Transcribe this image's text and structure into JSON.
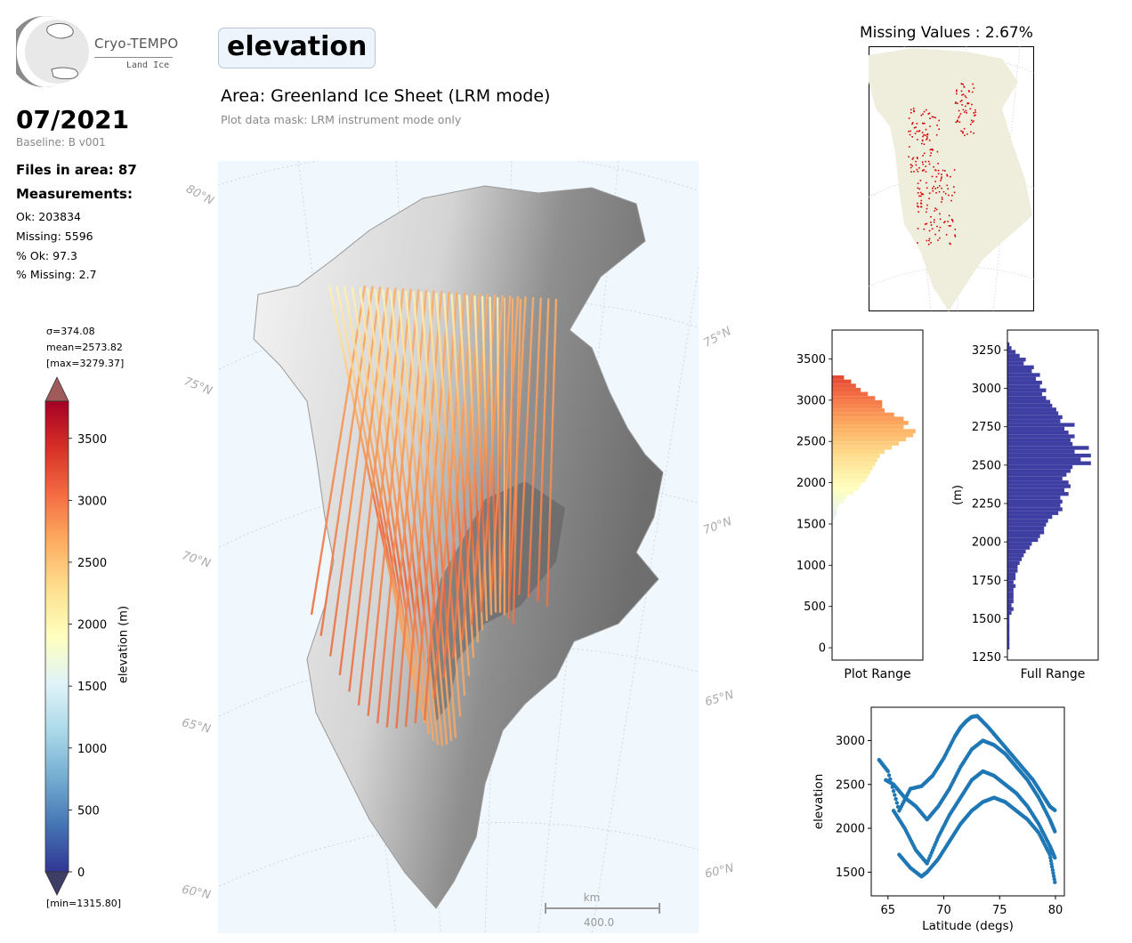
{
  "logo": {
    "name": "Cryo-TEMPO",
    "sub": "Land Ice"
  },
  "header": {
    "date": "07/2021",
    "baseline": "Baseline: B v001",
    "title": "elevation",
    "area": "Area: Greenland Ice Sheet (LRM mode)",
    "mask_note": "Plot data mask: LRM instrument mode only"
  },
  "stats": {
    "files": "Files in area: 87",
    "measurements_title": "Measurements:",
    "ok": "Ok: 203834",
    "missing": "Missing: 5596",
    "pct_ok": "% Ok: 97.3",
    "pct_missing": "% Missing: 2.7"
  },
  "colorbar": {
    "sigma": "σ=374.08",
    "mean": "mean=2573.82",
    "max": "[max=3279.37]",
    "min": "[min=1315.80]",
    "label": "elevation (m)",
    "ticks": [
      "0",
      "500",
      "1000",
      "1500",
      "2000",
      "2500",
      "3000",
      "3500"
    ],
    "colors": [
      "#313695",
      "#4575b4",
      "#74add1",
      "#abd9e9",
      "#e0f3f8",
      "#ffffbf",
      "#fee090",
      "#fdae61",
      "#f46d43",
      "#d73027",
      "#a50026"
    ]
  },
  "map": {
    "background": "#f0f7fd",
    "lat_labels": [
      "80°N",
      "75°N",
      "70°N",
      "65°N",
      "60°N",
      "75°N",
      "70°N",
      "65°N",
      "60°N"
    ],
    "scale_unit": "km",
    "scale_value": "400.0"
  },
  "missing_panel": {
    "title": "Missing Values : 2.67%",
    "land_color": "#efeedd",
    "point_color": "#d40000"
  },
  "chart_data": [
    {
      "type": "bar",
      "orientation": "horizontal",
      "title": "",
      "xlabel": "Plot Range",
      "ylabel": "",
      "ylim": [
        -150,
        3850
      ],
      "yticks": [
        "0",
        "500",
        "1000",
        "1500",
        "2000",
        "2500",
        "3000",
        "3500"
      ],
      "bin_width": 50,
      "bins": [
        1550,
        1600,
        1650,
        1700,
        1750,
        1800,
        1850,
        1900,
        1950,
        2000,
        2050,
        2100,
        2150,
        2200,
        2250,
        2300,
        2350,
        2400,
        2450,
        2500,
        2550,
        2600,
        2650,
        2700,
        2750,
        2800,
        2850,
        2900,
        2950,
        3000,
        3050,
        3100,
        3150,
        3200,
        3250
      ],
      "values": [
        1,
        2,
        2,
        3,
        5,
        6,
        9,
        11,
        12,
        14,
        15,
        16,
        17,
        18,
        19,
        20,
        22,
        25,
        28,
        31,
        34,
        35,
        30,
        32,
        30,
        26,
        22,
        21,
        21,
        18,
        15,
        12,
        10,
        8,
        5
      ]
    },
    {
      "type": "bar",
      "orientation": "horizontal",
      "title": "",
      "xlabel": "Full Range",
      "ylabel": "(m)",
      "ylim": [
        1230,
        3380
      ],
      "yticks": [
        "1250",
        "1500",
        "1750",
        "2000",
        "2250",
        "2500",
        "2750",
        "3000",
        "3250"
      ],
      "bar_color": "#3f3fa3",
      "bin_width": 25,
      "bins": [
        1300,
        1325,
        1350,
        1375,
        1400,
        1425,
        1450,
        1475,
        1500,
        1525,
        1550,
        1575,
        1600,
        1625,
        1650,
        1675,
        1700,
        1725,
        1750,
        1775,
        1800,
        1825,
        1850,
        1875,
        1900,
        1925,
        1950,
        1975,
        2000,
        2025,
        2050,
        2075,
        2100,
        2125,
        2150,
        2175,
        2200,
        2225,
        2250,
        2275,
        2300,
        2325,
        2350,
        2375,
        2400,
        2425,
        2450,
        2475,
        2500,
        2525,
        2550,
        2575,
        2600,
        2625,
        2650,
        2675,
        2700,
        2725,
        2750,
        2775,
        2800,
        2825,
        2850,
        2875,
        2900,
        2925,
        2950,
        2975,
        3000,
        3025,
        3050,
        3075,
        3100,
        3125,
        3150,
        3175,
        3200,
        3225,
        3250,
        3275
      ],
      "values": [
        1,
        1,
        1,
        1,
        1,
        1,
        1,
        1,
        1,
        2,
        3,
        2,
        3,
        3,
        3,
        3,
        4,
        3,
        4,
        4,
        5,
        5,
        6,
        7,
        8,
        9,
        11,
        12,
        15,
        16,
        18,
        18,
        19,
        20,
        22,
        25,
        27,
        26,
        27,
        26,
        30,
        28,
        31,
        30,
        27,
        29,
        31,
        32,
        41,
        36,
        41,
        33,
        40,
        32,
        31,
        33,
        30,
        28,
        33,
        26,
        27,
        25,
        24,
        22,
        21,
        19,
        17,
        19,
        16,
        17,
        14,
        16,
        12,
        13,
        8,
        9,
        6,
        4,
        2,
        1
      ]
    },
    {
      "type": "scatter",
      "title": "",
      "xlabel": "Latitude (degs)",
      "ylabel": "elevation",
      "xlim": [
        63.5,
        80.8
      ],
      "ylim": [
        1230,
        3380
      ],
      "xticks": [
        "65",
        "70",
        "75",
        "80"
      ],
      "yticks": [
        "1500",
        "2000",
        "2500",
        "3000"
      ],
      "point_color": "#1f77b4",
      "series": [
        {
          "x": [
            64.2,
            65.0,
            66.0,
            67.0,
            68.0,
            69.0,
            70.0,
            71.0,
            71.5,
            72.0,
            72.5,
            73.0,
            74.0,
            75.0,
            76.0,
            77.0,
            78.0,
            79.0,
            79.5,
            80.0
          ],
          "y": [
            2780,
            2650,
            2200,
            2450,
            2480,
            2600,
            2800,
            3050,
            3150,
            3220,
            3270,
            3280,
            3150,
            3000,
            2850,
            2700,
            2550,
            2350,
            2250,
            2200
          ]
        },
        {
          "x": [
            64.8,
            65.5,
            66.5,
            67.5,
            68.5,
            69.5,
            70.5,
            71.5,
            72.5,
            73.5,
            74.5,
            75.5,
            76.5,
            77.5,
            78.5,
            79.5,
            80.0
          ],
          "y": [
            2550,
            2500,
            2350,
            2250,
            2100,
            2250,
            2450,
            2700,
            2900,
            3000,
            2950,
            2850,
            2700,
            2550,
            2350,
            2100,
            1950
          ]
        },
        {
          "x": [
            65.5,
            66.5,
            67.5,
            68.5,
            69.5,
            70.5,
            71.5,
            72.5,
            73.5,
            74.5,
            75.5,
            76.5,
            77.5,
            78.5,
            79.5,
            80.0
          ],
          "y": [
            2200,
            2000,
            1750,
            1600,
            1900,
            2150,
            2350,
            2550,
            2650,
            2600,
            2500,
            2400,
            2250,
            2050,
            1800,
            1650
          ]
        },
        {
          "x": [
            66.0,
            67.0,
            68.0,
            68.5,
            69.5,
            70.5,
            71.5,
            72.5,
            73.5,
            74.5,
            75.5,
            76.5,
            77.5,
            78.5,
            79.5,
            80.0
          ],
          "y": [
            1700,
            1550,
            1450,
            1500,
            1650,
            1850,
            2050,
            2200,
            2300,
            2350,
            2300,
            2200,
            2100,
            1950,
            1700,
            1350
          ]
        }
      ]
    }
  ]
}
